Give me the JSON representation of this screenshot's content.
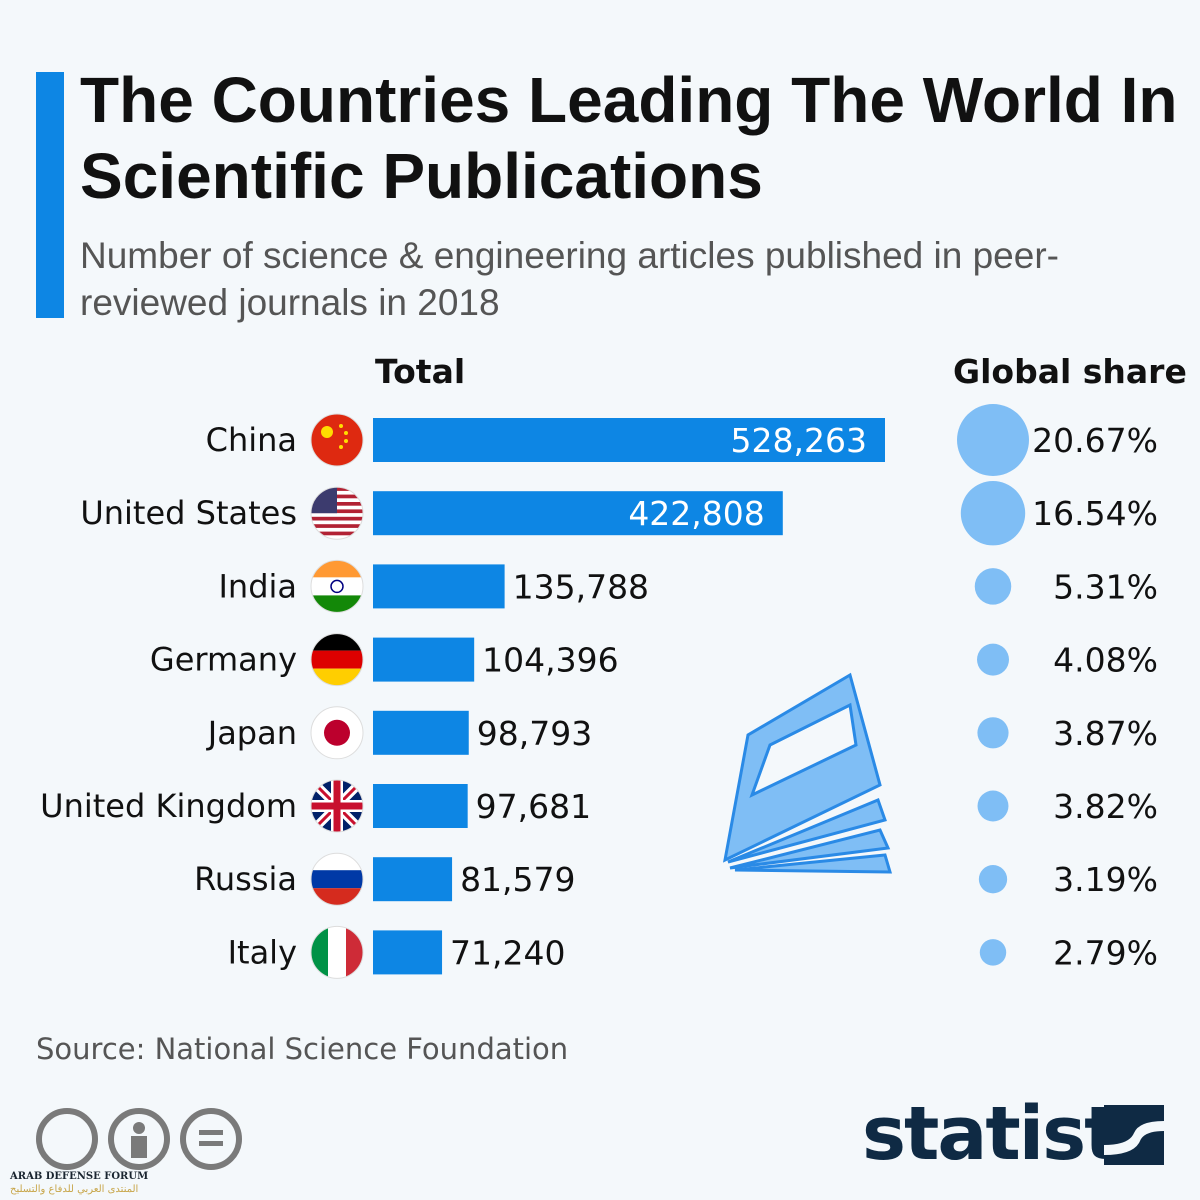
{
  "header": {
    "title": "The Countries Leading The World In Scientific Publications",
    "subtitle": "Number of science & engineering articles published in peer-reviewed journals in 2018"
  },
  "colors": {
    "accent": "#0d86e4",
    "bar": "#0d86e4",
    "circle": "#7fbef5",
    "background": "#f4f8fb"
  },
  "chart_data": {
    "type": "bar",
    "title": "The Countries Leading The World In Scientific Publications",
    "col_total": "Total",
    "col_share": "Global share",
    "categories": [
      "China",
      "United States",
      "India",
      "Germany",
      "Japan",
      "United Kingdom",
      "Russia",
      "Italy"
    ],
    "values": [
      528263,
      422808,
      135788,
      104396,
      98793,
      97681,
      81579,
      71240
    ],
    "value_labels": [
      "528,263",
      "422,808",
      "135,788",
      "104,396",
      "98,793",
      "97,681",
      "81,579",
      "71,240"
    ],
    "shares": [
      20.67,
      16.54,
      5.31,
      4.08,
      3.87,
      3.82,
      3.19,
      2.79
    ],
    "share_labels": [
      "20.67%",
      "16.54%",
      "5.31%",
      "4.08%",
      "3.87%",
      "3.82%",
      "3.19%",
      "2.79%"
    ]
  },
  "footer": {
    "source": "Source: National Science Foundation",
    "brand": "statista",
    "watermark": "ARAB DEFENSE FORUM",
    "watermark_ar": "المنتدى العربي للدفاع والتسليح"
  },
  "icons": [
    "china-flag-icon",
    "us-flag-icon",
    "india-flag-icon",
    "germany-flag-icon",
    "japan-flag-icon",
    "uk-flag-icon",
    "russia-flag-icon",
    "italy-flag-icon",
    "book-icon",
    "cc-icon",
    "by-icon",
    "nd-icon",
    "statista-logo-icon"
  ]
}
